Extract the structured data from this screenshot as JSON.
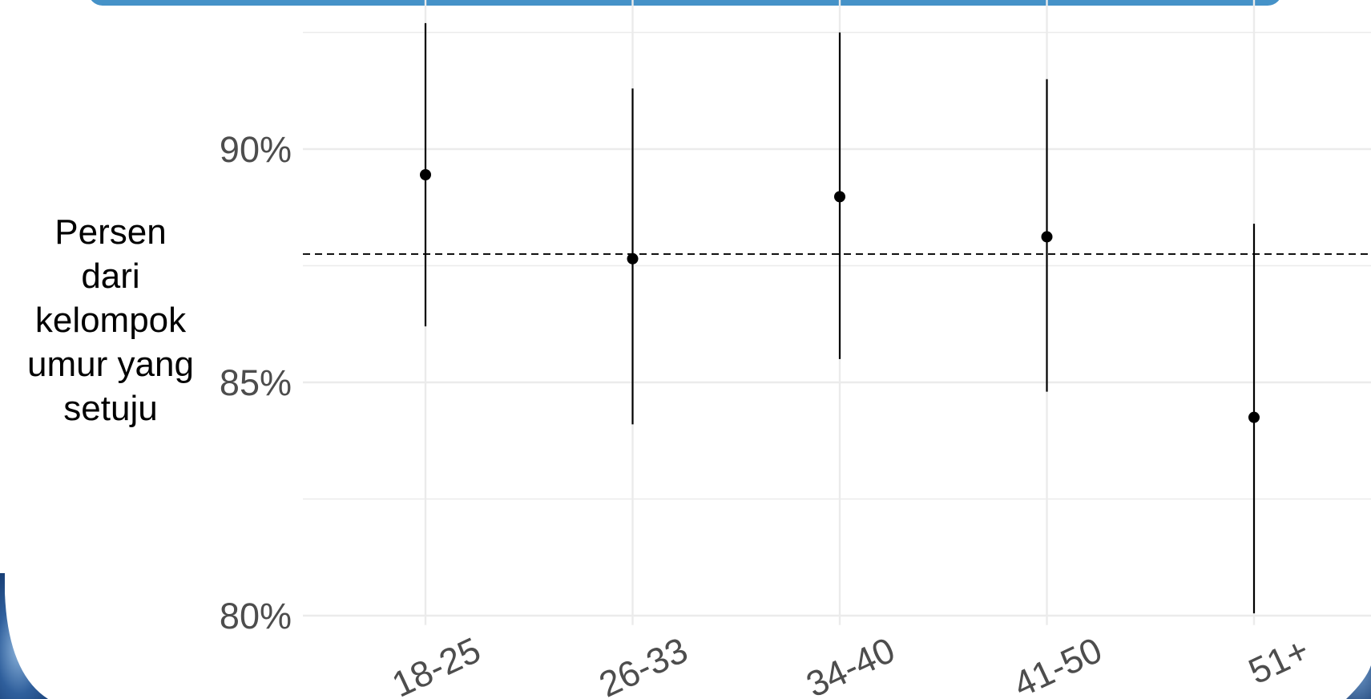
{
  "colors": {
    "banner": "#4592c8",
    "grid": "#ebebeb",
    "mark": "#000000",
    "tick_text": "#4d4d4d",
    "photo_dark": "#0d2f63",
    "photo_light": "#8fb6dd"
  },
  "chart_data": {
    "type": "scatter",
    "subtype": "point with error bars",
    "categories": [
      "18-25",
      "26-33",
      "34-40",
      "41-50",
      "51+"
    ],
    "values": [
      89.45,
      87.65,
      88.98,
      88.12,
      84.25
    ],
    "lower": [
      86.2,
      84.1,
      85.5,
      84.8,
      80.05
    ],
    "upper": [
      92.7,
      91.3,
      92.5,
      91.5,
      88.4
    ],
    "reference_line": 87.75,
    "reference_line_style": "dashed",
    "ylim": [
      79.8,
      93.2
    ],
    "yticks": [
      80,
      85,
      90
    ],
    "ytick_labels": [
      "80%",
      "85%",
      "90%"
    ],
    "minor_yticks": [
      82.5,
      87.5,
      92.5
    ],
    "ylabel_lines": [
      "Persen",
      "dari",
      "kelompok",
      "umur yang",
      "setuju"
    ],
    "xtick_rotation": -25,
    "grid": true
  }
}
